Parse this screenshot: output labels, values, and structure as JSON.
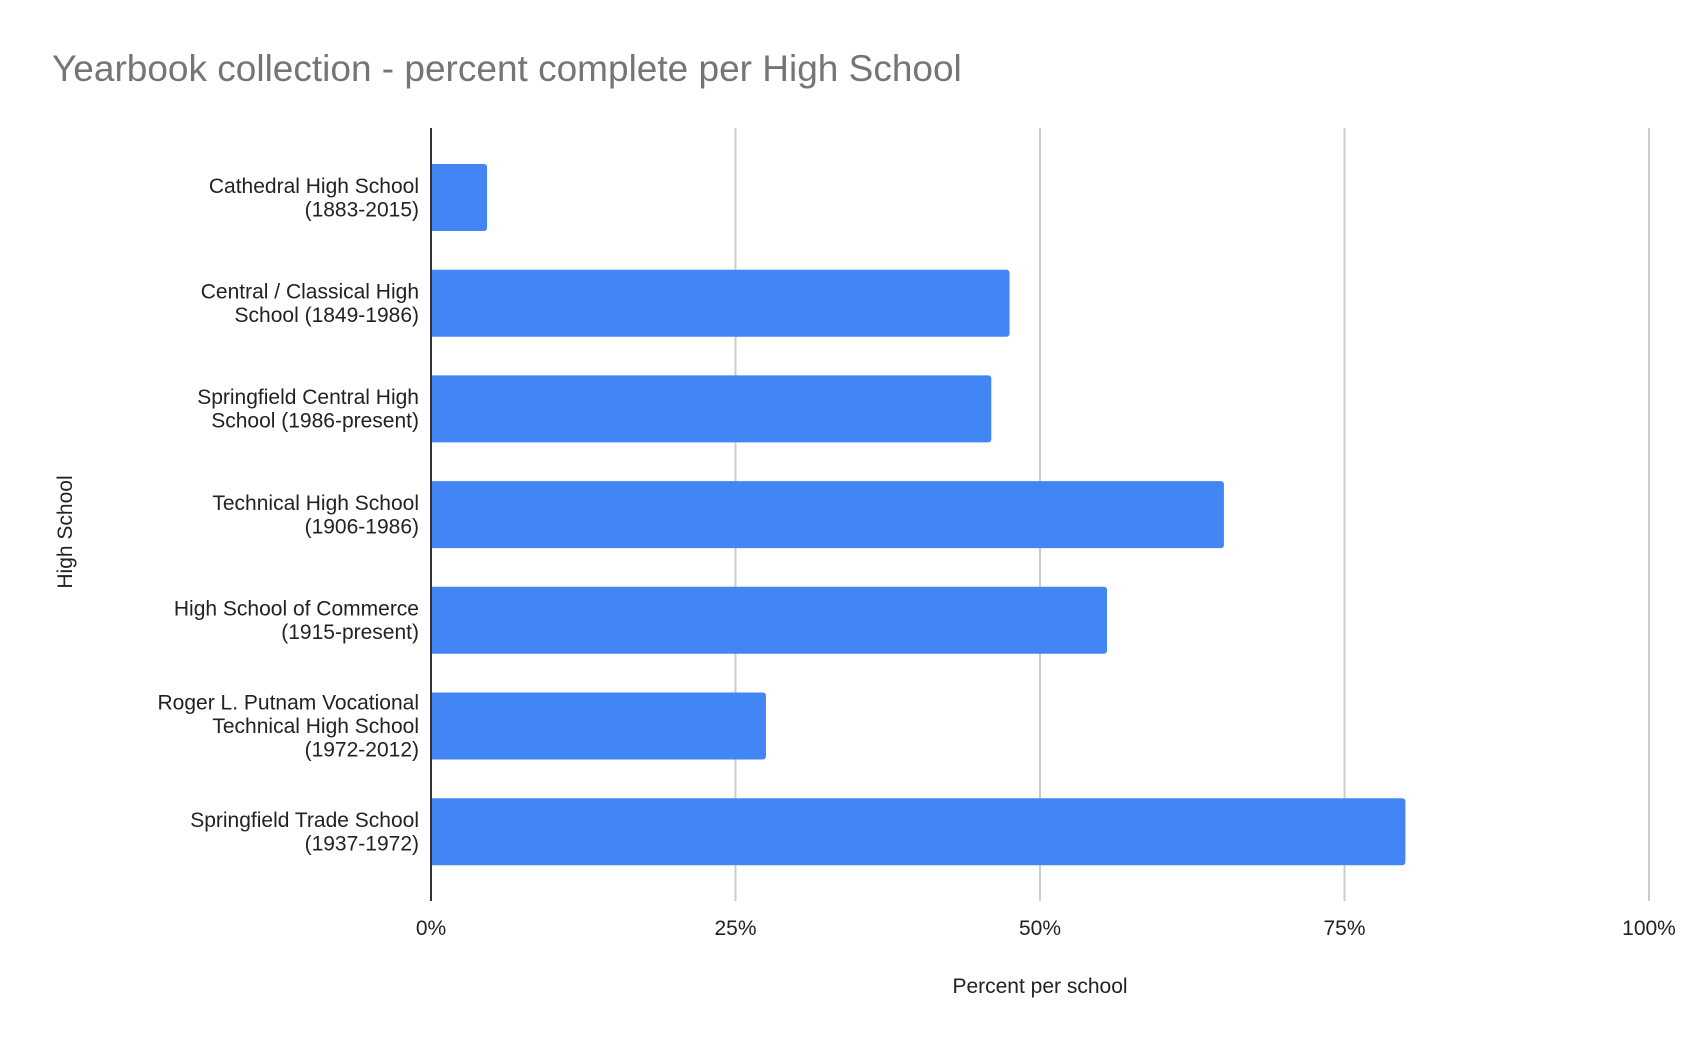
{
  "chart_data": {
    "type": "bar",
    "orientation": "horizontal",
    "title": "Yearbook collection - percent complete per High School",
    "xlabel": "Percent per school",
    "ylabel": "High School",
    "xlim": [
      0,
      100
    ],
    "x_ticks": [
      "0%",
      "25%",
      "50%",
      "75%",
      "100%"
    ],
    "grid": true,
    "bar_color": "#4285f4",
    "categories": [
      [
        "Cathedral High School",
        "(1883-2015)"
      ],
      [
        "Central / Classical High",
        "School (1849-1986)"
      ],
      [
        "Springfield Central High",
        "School (1986-present)"
      ],
      [
        "Technical High School",
        "(1906-1986)"
      ],
      [
        "High School of Commerce",
        "(1915-present)"
      ],
      [
        "Roger L. Putnam Vocational",
        "Technical High School",
        "(1972-2012)"
      ],
      [
        "Springfield Trade School",
        "(1937-1972)"
      ]
    ],
    "values": [
      4.6,
      47.5,
      46,
      65.1,
      55.5,
      27.5,
      80
    ]
  }
}
